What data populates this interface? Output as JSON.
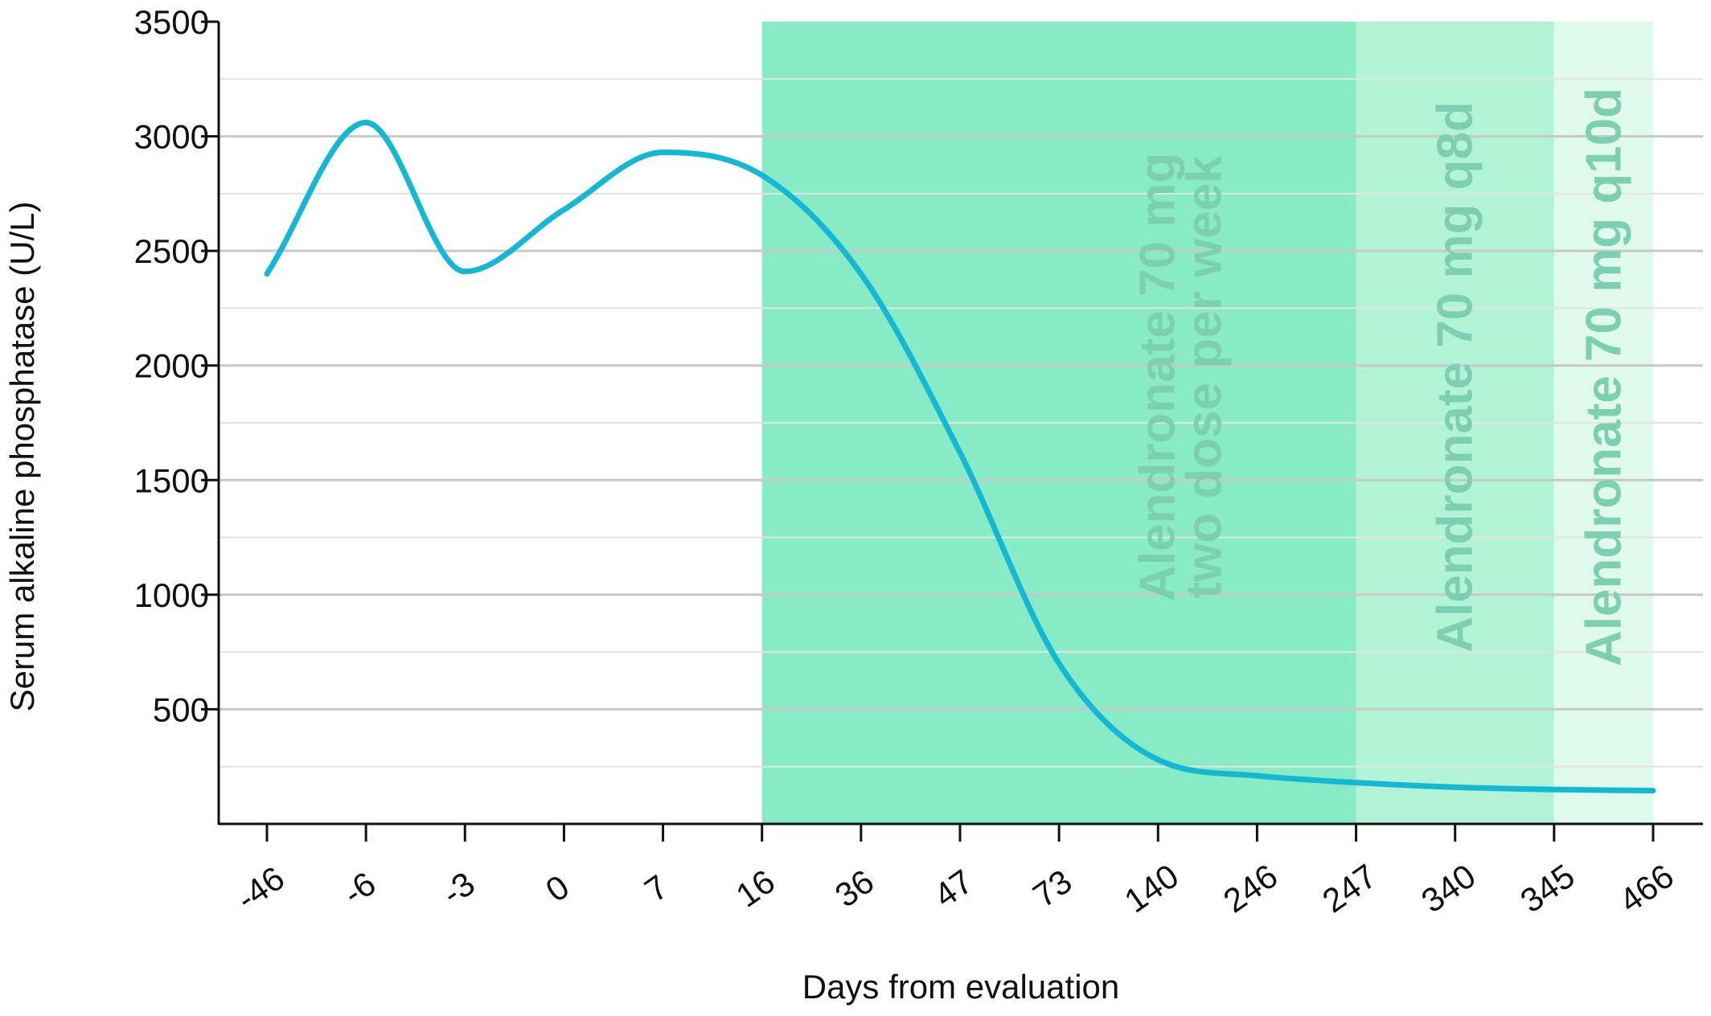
{
  "chart_data": {
    "type": "line",
    "title": "",
    "xlabel": "Days from evaluation",
    "ylabel": "Serum alkaline phosphatase (U/L)",
    "categories": [
      "-46",
      "-6",
      "-3",
      "0",
      "7",
      "16",
      "36",
      "47",
      "73",
      "140",
      "246",
      "247",
      "340",
      "345",
      "466"
    ],
    "series": [
      {
        "values": [
          2400,
          3060,
          2410,
          2680,
          2930,
          2830,
          2400,
          1620,
          700,
          280,
          210,
          180,
          160,
          150,
          145
        ],
        "color": "#14b8d4"
      }
    ],
    "ylim": [
      0,
      3500
    ],
    "yticks": [
      500,
      1000,
      1500,
      2000,
      2500,
      3000,
      3500
    ],
    "grid": true,
    "bands": [
      {
        "from": "16",
        "to": "247",
        "label_lines": [
          "Alendronate 70 mg",
          "two dose per week"
        ],
        "color": "#87ebc6"
      },
      {
        "from": "247",
        "to": "345",
        "label_lines": [
          "Alendronate 70 mg q8d"
        ],
        "color": "#b2f3d6"
      },
      {
        "from": "345",
        "to": "466",
        "label_lines": [
          "Alendronate 70 mg q10d"
        ],
        "color": "#dffaea"
      }
    ],
    "band_label_color": "#7dcfb2"
  }
}
